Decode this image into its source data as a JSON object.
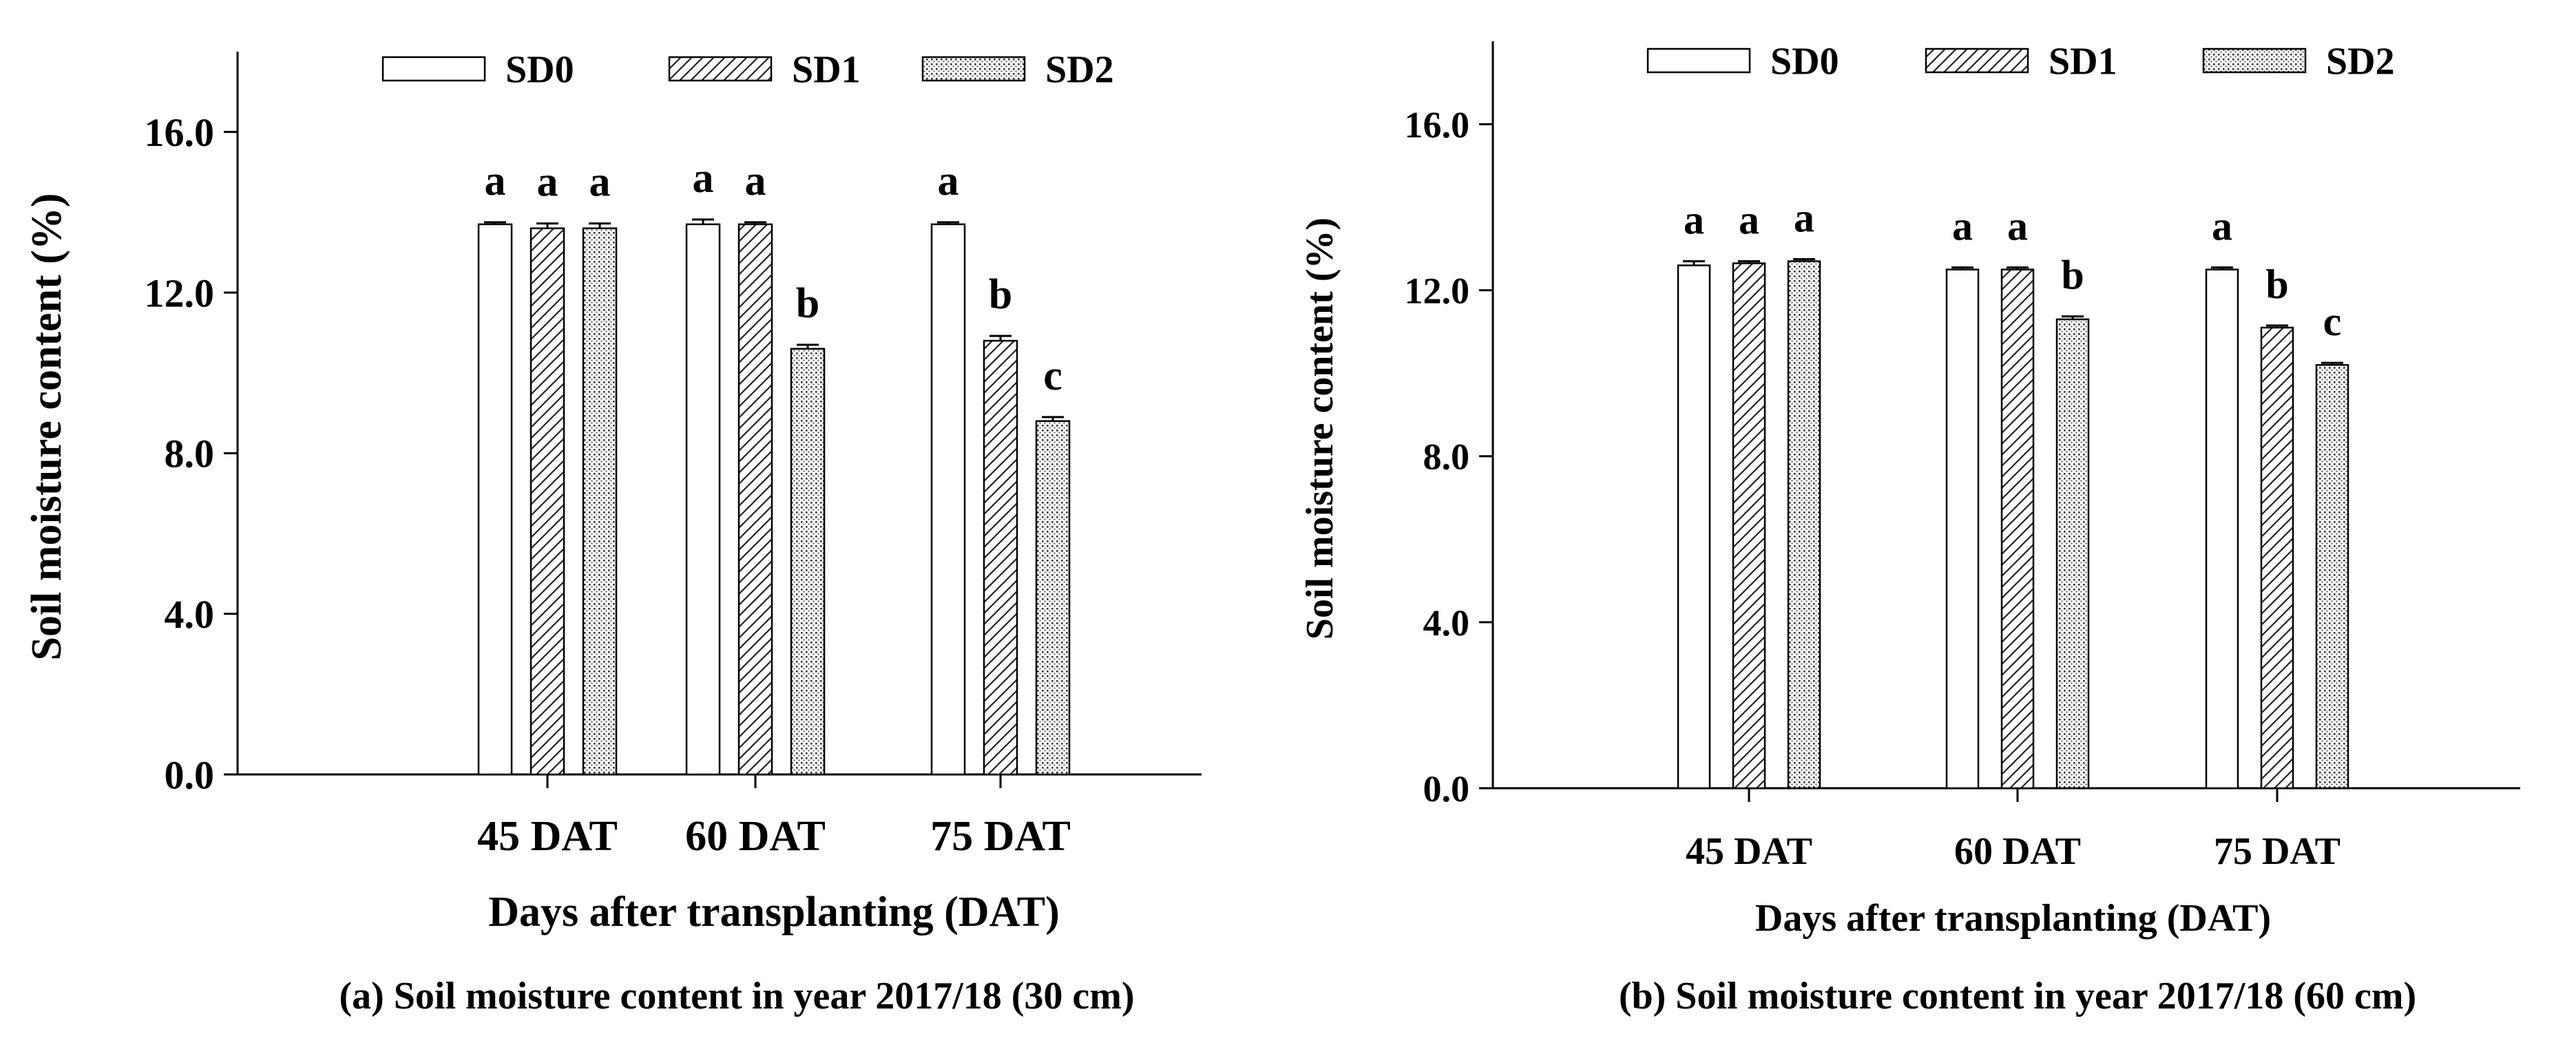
{
  "chart_data": [
    {
      "type": "bar",
      "panel": "a",
      "caption": "(a) Soil moisture content in year 2017/18 (30 cm)",
      "xlabel": "Days after transplanting (DAT)",
      "ylabel": "Soil moisture content (%)",
      "ylim": [
        0,
        18
      ],
      "yticks": [
        0,
        4,
        8,
        12,
        16
      ],
      "ytick_labels": [
        "0.0",
        "4.0",
        "8.0",
        "12.0",
        "16.0"
      ],
      "categories": [
        "45 DAT",
        "60 DAT",
        "75 DAT"
      ],
      "legend_position": "top",
      "series": [
        {
          "name": "SD0",
          "pattern": "open",
          "values": [
            13.7,
            13.7,
            13.7
          ],
          "errors": [
            0.05,
            0.12,
            0.05
          ],
          "letters": [
            "a",
            "a",
            "a"
          ]
        },
        {
          "name": "SD1",
          "pattern": "hatch",
          "values": [
            13.6,
            13.7,
            10.8
          ],
          "errors": [
            0.12,
            0.05,
            0.12
          ],
          "letters": [
            "a",
            "a",
            "b"
          ]
        },
        {
          "name": "SD2",
          "pattern": "dots",
          "values": [
            13.6,
            10.6,
            8.8
          ],
          "errors": [
            0.12,
            0.1,
            0.1
          ],
          "letters": [
            "a",
            "b",
            "c"
          ]
        }
      ]
    },
    {
      "type": "bar",
      "panel": "b",
      "caption": "(b) Soil moisture content in year 2017/18 (60 cm)",
      "xlabel": "Days after transplanting (DAT)",
      "ylabel": "Soil moisture content (%)",
      "ylim": [
        0,
        18
      ],
      "yticks": [
        0,
        4,
        8,
        12,
        16
      ],
      "ytick_labels": [
        "0.0",
        "4.0",
        "8.0",
        "12.0",
        "16.0"
      ],
      "categories": [
        "45 DAT",
        "60 DAT",
        "75 DAT"
      ],
      "legend_position": "top",
      "series": [
        {
          "name": "SD0",
          "pattern": "open",
          "values": [
            12.6,
            12.5,
            12.5
          ],
          "errors": [
            0.1,
            0.05,
            0.05
          ],
          "letters": [
            "a",
            "a",
            "a"
          ]
        },
        {
          "name": "SD1",
          "pattern": "hatch",
          "values": [
            12.65,
            12.5,
            11.1
          ],
          "errors": [
            0.05,
            0.05,
            0.05
          ],
          "letters": [
            "a",
            "a",
            "b"
          ]
        },
        {
          "name": "SD2",
          "pattern": "dots",
          "values": [
            12.7,
            11.3,
            10.2
          ],
          "errors": [
            0.05,
            0.07,
            0.05
          ],
          "letters": [
            "a",
            "b",
            "c"
          ]
        }
      ]
    }
  ]
}
